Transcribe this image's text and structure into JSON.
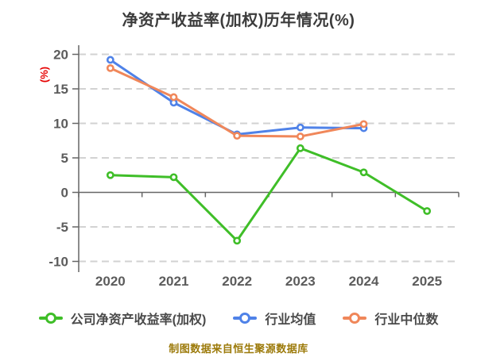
{
  "title": "净资产收益率(加权)历年情况(%)",
  "source_note": "制图数据来自恒生聚源数据库",
  "chart_data": {
    "type": "line",
    "title": "净资产收益率(加权)历年情况(%)",
    "xlabel": "",
    "ylabel": "(%)",
    "categories": [
      "2020",
      "2021",
      "2022",
      "2023",
      "2024",
      "2025"
    ],
    "series": [
      {
        "key": "company-roe-weighted",
        "name": "公司净资产收益率(加权)",
        "color": "#3fbe28",
        "values": [
          2.5,
          2.2,
          -7.0,
          6.4,
          2.9,
          -2.7
        ]
      },
      {
        "key": "industry-mean",
        "name": "行业均值",
        "color": "#4f82e8",
        "values": [
          19.2,
          13.0,
          8.4,
          9.4,
          9.3,
          null
        ]
      },
      {
        "key": "industry-median",
        "name": "行业中位数",
        "color": "#f0875a",
        "values": [
          18.0,
          13.8,
          8.2,
          8.1,
          9.9,
          null
        ]
      }
    ],
    "ylim": [
      -10,
      20
    ],
    "yticks": [
      20,
      15,
      10,
      5,
      0,
      -5,
      -10
    ],
    "grid": "dashed",
    "legend_position": "bottom",
    "colors": {
      "title_text": "#3c3c3c",
      "axis_line": "#666666",
      "tick_label": "#5c5c5c",
      "gridline": "#d2d2d2",
      "y_axis_name": "#e60000",
      "legend_text": "#4a4a4a",
      "source_note": "#9c7a0a"
    }
  }
}
